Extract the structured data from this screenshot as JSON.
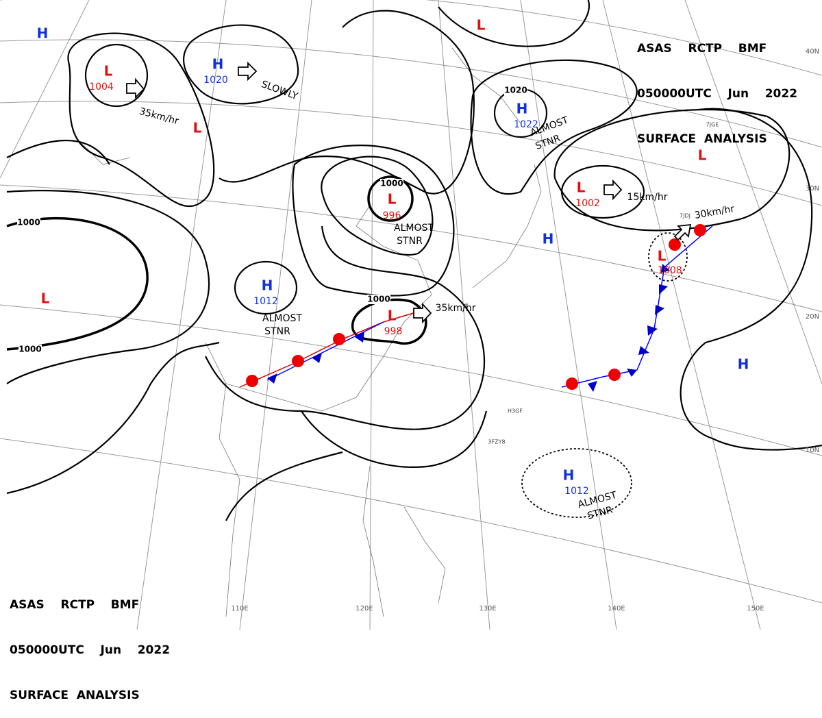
{
  "header_top": {
    "line1": "ASAS    RCTP    BMF",
    "line2": "050000UTC    Jun    2022",
    "line3": "SURFACE  ANALYSIS"
  },
  "header_bottom": {
    "line1": "ASAS    RCTP    BMF",
    "line2": "050000UTC    Jun    2022",
    "line3": "SURFACE  ANALYSIS"
  },
  "systems": [
    {
      "letter": "H"
    },
    {
      "letter": "L",
      "pressure": 1004
    },
    {
      "letter": "H",
      "pressure": 1020
    },
    {
      "letter": "L"
    },
    {
      "letter": "L"
    },
    {
      "letter": "H",
      "pressure": 1022
    },
    {
      "letter": "L",
      "pressure": 996
    },
    {
      "letter": "L"
    },
    {
      "letter": "L",
      "pressure": 1002
    },
    {
      "letter": "H"
    },
    {
      "letter": "L",
      "pressure": 1008
    },
    {
      "letter": "H",
      "pressure": 1012
    },
    {
      "letter": "L"
    },
    {
      "letter": "L",
      "pressure": 998
    },
    {
      "letter": "H"
    },
    {
      "letter": "H",
      "pressure": 1012
    }
  ],
  "isobar_labels": [
    1000,
    1000,
    1000,
    1020,
    1000
  ],
  "annotations": [
    "SLOWLY",
    "35km/hr",
    "ALMOST",
    "STNR",
    "ALMOST",
    "STNR",
    "ALMOST",
    "STNR",
    "ALMOST",
    "STNR",
    "15km/hr",
    "30km/hr",
    "35km/hr"
  ],
  "latitudes": [
    "40N",
    "30N",
    "20N",
    "10N"
  ],
  "longitudes": [
    "110E",
    "120E",
    "130E",
    "140E",
    "150E"
  ],
  "stations": [
    "3FZY8",
    "H3GF",
    "7JGE",
    "7JDJ"
  ]
}
